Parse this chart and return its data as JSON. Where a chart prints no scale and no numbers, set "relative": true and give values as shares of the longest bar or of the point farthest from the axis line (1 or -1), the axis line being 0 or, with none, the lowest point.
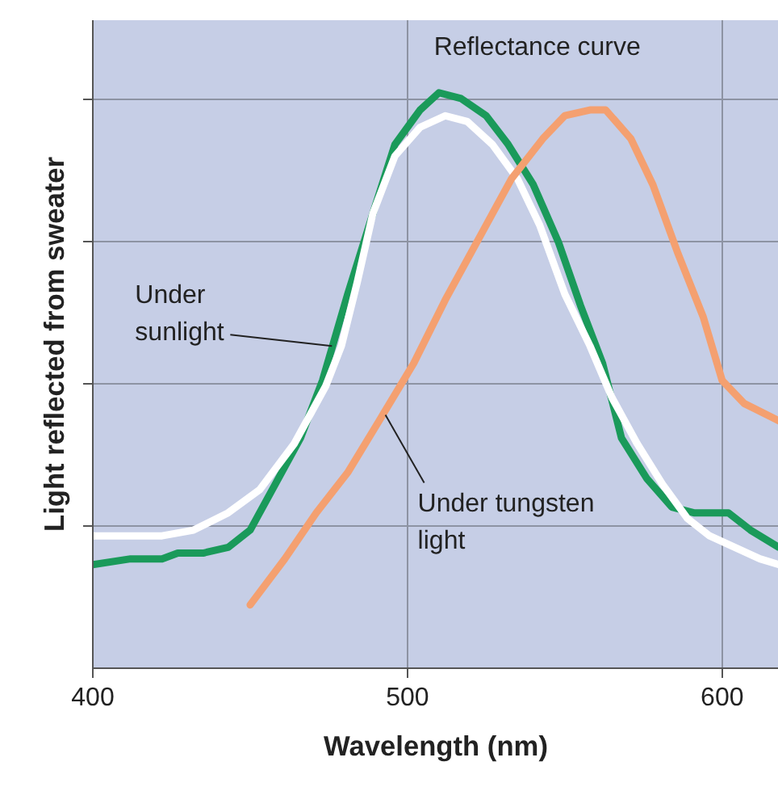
{
  "chart_data": {
    "type": "line",
    "xlabel": "Wavelength (nm)",
    "ylabel": "Light reflected from sweater",
    "relative": true,
    "xlim": [
      400,
      618
    ],
    "xticks": [
      400,
      500,
      600
    ],
    "grid": true,
    "marker": "none",
    "line_style": "solid",
    "annotations": [
      {
        "text": "Under sunlight",
        "x": 476,
        "y": 0.56
      },
      {
        "text": "Reflectance curve",
        "x": 512,
        "y": 0.96
      },
      {
        "text": "Under tungsten light",
        "x": 493,
        "y": 0.44
      }
    ],
    "series": [
      {
        "color": "#1a9a5a",
        "x": [
          400,
          412,
          422,
          427,
          435,
          443,
          450,
          458,
          466,
          473,
          481,
          489,
          496,
          504,
          510,
          517,
          525,
          532,
          540,
          548,
          555,
          562,
          568,
          576,
          584,
          591,
          596,
          602,
          609,
          618
        ],
        "values": [
          0.18,
          0.19,
          0.19,
          0.2,
          0.2,
          0.21,
          0.24,
          0.32,
          0.4,
          0.5,
          0.65,
          0.79,
          0.91,
          0.97,
          1.0,
          0.99,
          0.96,
          0.91,
          0.84,
          0.74,
          0.63,
          0.53,
          0.4,
          0.33,
          0.28,
          0.27,
          0.27,
          0.27,
          0.24,
          0.21
        ]
      },
      {
        "color": "#ffffff",
        "x": [
          400,
          412,
          422,
          432,
          443,
          453,
          464,
          474,
          479,
          484,
          489,
          496,
          504,
          512,
          519,
          527,
          535,
          542,
          550,
          558,
          565,
          573,
          581,
          589,
          596,
          604,
          612,
          618
        ],
        "values": [
          0.23,
          0.23,
          0.23,
          0.24,
          0.27,
          0.31,
          0.39,
          0.49,
          0.56,
          0.67,
          0.79,
          0.89,
          0.94,
          0.96,
          0.95,
          0.91,
          0.85,
          0.77,
          0.65,
          0.56,
          0.47,
          0.39,
          0.32,
          0.26,
          0.23,
          0.21,
          0.19,
          0.18
        ]
      },
      {
        "color": "#f4a070",
        "x": [
          450,
          461,
          471,
          481,
          491,
          502,
          512,
          523,
          533,
          543,
          550,
          558,
          563,
          571,
          578,
          586,
          594,
          600,
          607,
          618
        ],
        "values": [
          0.11,
          0.19,
          0.27,
          0.34,
          0.43,
          0.53,
          0.64,
          0.75,
          0.85,
          0.92,
          0.96,
          0.97,
          0.97,
          0.92,
          0.84,
          0.72,
          0.61,
          0.5,
          0.46,
          0.43
        ]
      }
    ]
  }
}
